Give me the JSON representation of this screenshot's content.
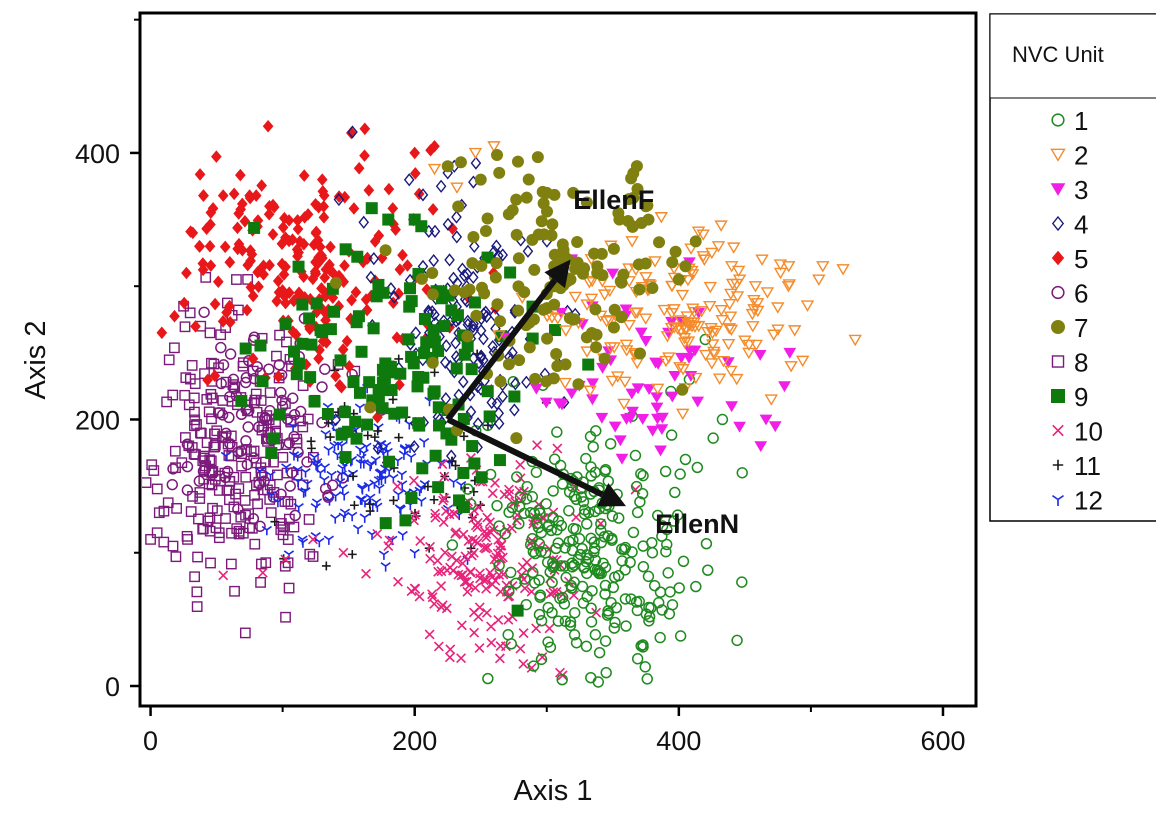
{
  "chart_data": {
    "type": "scatter",
    "xlabel": "Axis 1",
    "ylabel": "Axis 2",
    "xlim": [
      -8,
      625
    ],
    "ylim": [
      -15,
      505
    ],
    "xticks": [
      0,
      200,
      400,
      600
    ],
    "yticks": [
      0,
      200,
      400
    ],
    "grid": false,
    "legend": {
      "title": "NVC Unit",
      "position": "right",
      "entries": [
        "1",
        "2",
        "3",
        "4",
        "5",
        "6",
        "7",
        "8",
        "9",
        "10",
        "11",
        "12"
      ]
    },
    "series": [
      {
        "name": "1",
        "color": "#1f8a1f",
        "marker": "circle-open",
        "n": 260,
        "cx": 330,
        "cy": 100,
        "sx": 35,
        "sy": 45,
        "rot": 0.35,
        "x": [
          290,
          296,
          301,
          304,
          318,
          339,
          340,
          345,
          360,
          368,
          373,
          380,
          384,
          390,
          405,
          408,
          414,
          426,
          433,
          448,
          394,
          401,
          420
        ],
        "y": [
          15,
          20,
          33,
          55,
          48,
          3,
          25,
          10,
          45,
          63,
          105,
          100,
          128,
          161,
          170,
          230,
          164,
          186,
          200,
          160,
          221,
          159,
          260
        ]
      },
      {
        "name": "2",
        "color": "#f58b2a",
        "marker": "triangle-down-open",
        "n": 150,
        "cx": 400,
        "cy": 275,
        "sx": 45,
        "sy": 28,
        "rot": 0,
        "x": [
          215,
          232,
          246,
          260,
          410,
          425,
          430,
          440,
          446,
          458,
          463,
          477,
          483,
          506,
          509,
          456,
          485,
          453,
          470
        ],
        "y": [
          388,
          374,
          400,
          405,
          270,
          325,
          330,
          315,
          305,
          300,
          320,
          310,
          300,
          305,
          315,
          270,
          240,
          250,
          215
        ]
      },
      {
        "name": "3",
        "color": "#f01ee6",
        "marker": "triangle-down-filled",
        "n": 55,
        "cx": 375,
        "cy": 225,
        "sx": 35,
        "sy": 30,
        "rot": 0,
        "x": [
          408,
          415,
          440,
          462,
          466,
          473,
          484,
          480
        ],
        "y": [
          318,
          280,
          210,
          180,
          200,
          195,
          250,
          225
        ]
      },
      {
        "name": "4",
        "color": "#1a1a7a",
        "marker": "diamond-open",
        "n": 150,
        "cx": 235,
        "cy": 270,
        "sx": 35,
        "sy": 45,
        "rot": 0,
        "x": [
          225,
          220,
          230
        ],
        "y": [
          385,
          375,
          390
        ]
      },
      {
        "name": "5",
        "color": "#e8181a",
        "marker": "diamond-filled",
        "n": 210,
        "cx": 125,
        "cy": 315,
        "sx": 55,
        "sy": 42,
        "rot": -0.15,
        "x": [
          40,
          55,
          75,
          80,
          90,
          130,
          152,
          162,
          200,
          212,
          215,
          32,
          45,
          60
        ],
        "y": [
          368,
          368,
          368,
          368,
          360,
          380,
          415,
          398,
          400,
          402,
          405,
          340,
          330,
          318
        ]
      },
      {
        "name": "6",
        "color": "#7b1a7b",
        "marker": "circle-open",
        "n": 90,
        "cx": 85,
        "cy": 195,
        "sx": 30,
        "sy": 40,
        "rot": 0,
        "x": [],
        "y": []
      },
      {
        "name": "7",
        "color": "#808010",
        "marker": "circle-filled",
        "n": 140,
        "cx": 300,
        "cy": 300,
        "sx": 45,
        "sy": 40,
        "rot": 0.2,
        "x": [
          225,
          235,
          250,
          264,
          300,
          320,
          355,
          365,
          375,
          377,
          385,
          395,
          400,
          405
        ],
        "y": [
          390,
          393,
          380,
          385,
          370,
          370,
          350,
          345,
          360,
          350,
          333,
          318,
          305,
          315
        ]
      },
      {
        "name": "8",
        "color": "#7b1a7b",
        "marker": "square-open",
        "n": 230,
        "cx": 65,
        "cy": 175,
        "sx": 30,
        "sy": 50,
        "rot": 0,
        "x": [
          0,
          5,
          10,
          17,
          25,
          30,
          38,
          45,
          65,
          70,
          28,
          40,
          52
        ],
        "y": [
          110,
          115,
          108,
          105,
          285,
          280,
          270,
          265,
          305,
          240,
          110,
          118,
          115
        ]
      },
      {
        "name": "9",
        "color": "#0e7a0e",
        "marker": "square-filled",
        "n": 130,
        "cx": 180,
        "cy": 240,
        "sx": 50,
        "sy": 55,
        "rot": 0,
        "x": [
          200,
          205,
          180
        ],
        "y": [
          350,
          345,
          350
        ]
      },
      {
        "name": "10",
        "color": "#e8237a",
        "marker": "x",
        "n": 190,
        "cx": 255,
        "cy": 100,
        "sx": 35,
        "sy": 35,
        "rot": 0.2,
        "x": [
          55,
          85,
          102,
          123,
          146,
          180,
          220,
          245,
          265,
          280,
          312,
          310
        ],
        "y": [
          83,
          85,
          95,
          110,
          100,
          105,
          75,
          40,
          30,
          28,
          8,
          10
        ]
      },
      {
        "name": "11",
        "color": "#1a1a1a",
        "marker": "plus",
        "n": 50,
        "cx": 190,
        "cy": 175,
        "sx": 45,
        "sy": 50,
        "rot": 0,
        "x": [],
        "y": []
      },
      {
        "name": "12",
        "color": "#1a2ae8",
        "marker": "tri",
        "n": 140,
        "cx": 155,
        "cy": 160,
        "sx": 35,
        "sy": 25,
        "rot": 0,
        "x": [
          115,
          135,
          178,
          200,
          240,
          160
        ],
        "y": [
          110,
          110,
          90,
          100,
          95,
          140
        ]
      }
    ],
    "arrows": [
      {
        "label": "EllenF",
        "from": [
          225,
          200
        ],
        "to": [
          318,
          320
        ],
        "label_at": [
          320,
          358
        ]
      },
      {
        "label": "EllenN",
        "from": [
          225,
          200
        ],
        "to": [
          360,
          135
        ],
        "label_at": [
          382,
          115
        ]
      }
    ]
  }
}
